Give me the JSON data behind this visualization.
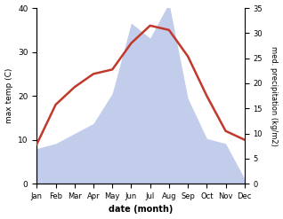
{
  "months": [
    "Jan",
    "Feb",
    "Mar",
    "Apr",
    "May",
    "Jun",
    "Jul",
    "Aug",
    "Sep",
    "Oct",
    "Nov",
    "Dec"
  ],
  "temperature": [
    9,
    18,
    22,
    25,
    26,
    32,
    36,
    35,
    29,
    20,
    12,
    10
  ],
  "precipitation": [
    7,
    8,
    10,
    12,
    18,
    32,
    29,
    36,
    17,
    9,
    8,
    1
  ],
  "temp_color": "#c0392b",
  "precip_color": "#b8c4e8",
  "xlabel": "date (month)",
  "ylabel_left": "max temp (C)",
  "ylabel_right": "med. precipitation (kg/m2)",
  "ylim_left": [
    0,
    40
  ],
  "ylim_right": [
    0,
    35
  ],
  "yticks_left": [
    0,
    10,
    20,
    30,
    40
  ],
  "yticks_right": [
    0,
    5,
    10,
    15,
    20,
    25,
    30,
    35
  ],
  "background_color": "#ffffff",
  "line_width": 1.8
}
